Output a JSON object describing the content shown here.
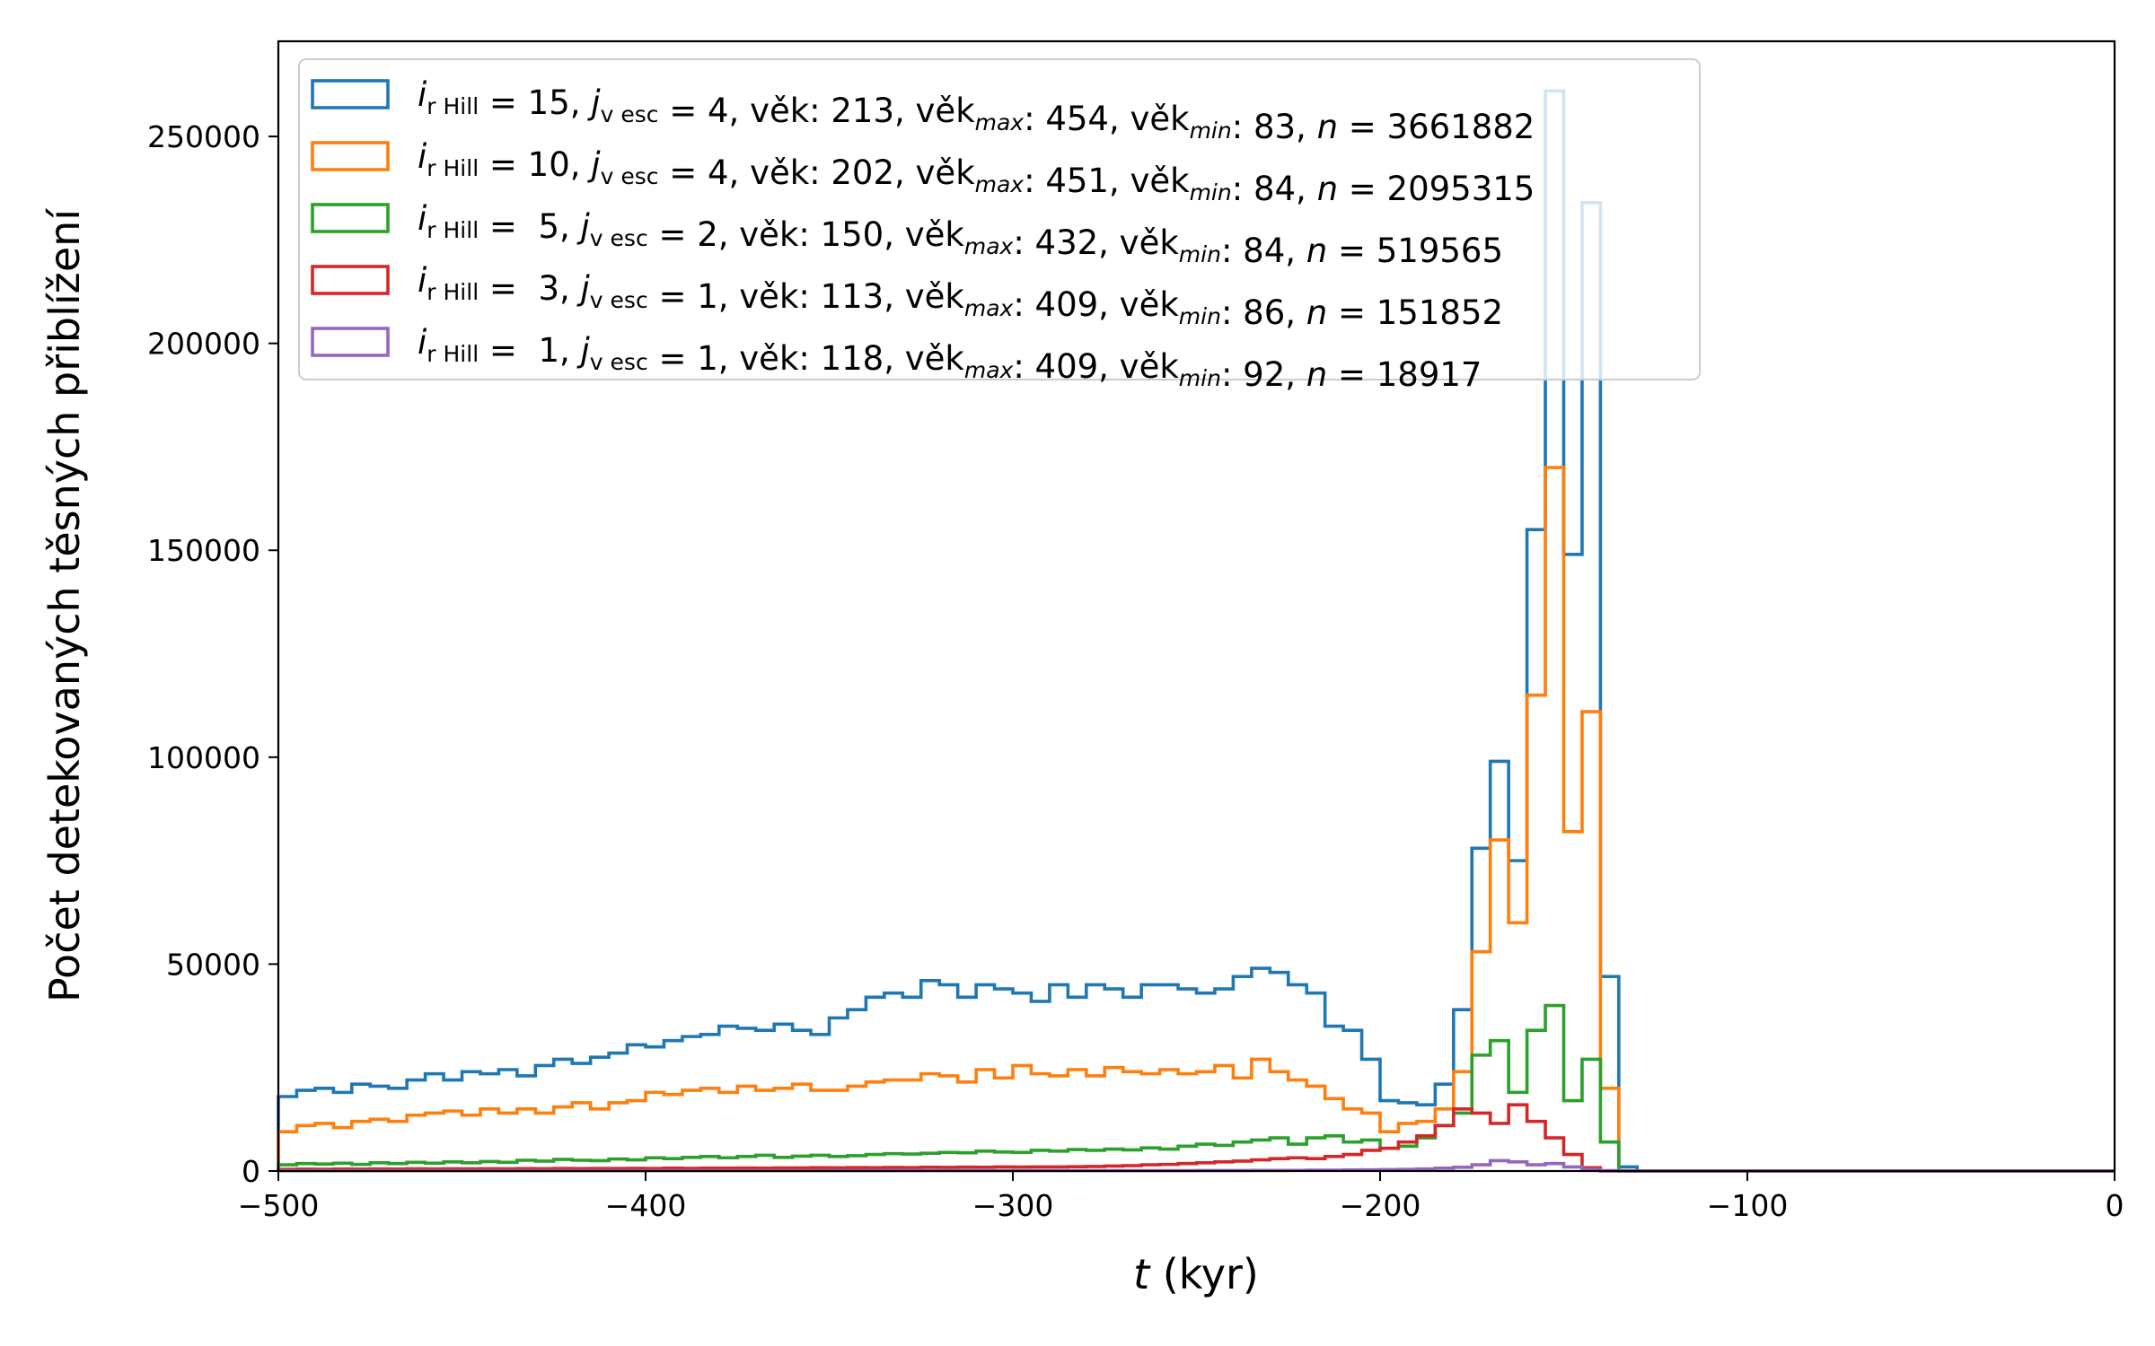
{
  "chart_data": {
    "type": "step-histogram",
    "xlabel_var": "t",
    "xlabel_unit": " (kyr)",
    "ylabel": "Počet detekovaných těsných přiblížení",
    "xlim": [
      -500,
      0
    ],
    "ylim": [
      0,
      273000
    ],
    "xticks": [
      -500,
      -400,
      -300,
      -200,
      -100,
      0
    ],
    "xtick_labels": [
      "−500",
      "−400",
      "−300",
      "−200",
      "−100",
      "0"
    ],
    "yticks": [
      0,
      50000,
      100000,
      150000,
      200000,
      250000
    ],
    "ytick_labels": [
      "0",
      "50000",
      "100000",
      "150000",
      "200000",
      "250000"
    ],
    "grid": false,
    "legend_position": "upper-left",
    "bin_start": -500,
    "bin_width": 5,
    "series": [
      {
        "color": "#1f77b4",
        "legend": {
          "i": "15",
          "j": "4",
          "vek": "213",
          "vek_max": "454",
          "vek_min": "83",
          "n": "3661882"
        },
        "values": [
          18000,
          19500,
          20000,
          19000,
          21000,
          20500,
          20000,
          22000,
          23500,
          22000,
          24000,
          23500,
          24500,
          23000,
          25500,
          27000,
          26000,
          27500,
          28500,
          30500,
          30000,
          31500,
          32500,
          33000,
          35000,
          34500,
          34000,
          35500,
          34000,
          33000,
          37000,
          39000,
          42000,
          43000,
          42000,
          46000,
          45000,
          42000,
          45000,
          44000,
          43000,
          41000,
          45000,
          42000,
          45000,
          44000,
          42000,
          45000,
          45000,
          44000,
          43000,
          44000,
          47000,
          49000,
          48000,
          45000,
          43000,
          35000,
          34000,
          27000,
          17000,
          16500,
          16000,
          21000,
          39000,
          78000,
          99000,
          75000,
          155000,
          261000,
          149000,
          234000,
          47000,
          1000,
          0,
          0,
          0,
          0,
          0,
          0,
          0,
          0,
          0,
          0,
          0,
          0,
          0,
          0,
          0,
          0,
          0,
          0,
          0,
          0,
          0,
          0,
          0,
          0,
          0,
          0
        ]
      },
      {
        "color": "#ff7f0e",
        "legend": {
          "i": "10",
          "j": "4",
          "vek": "202",
          "vek_max": "451",
          "vek_min": "84",
          "n": "2095315"
        },
        "values": [
          9500,
          11000,
          11500,
          10500,
          12000,
          12500,
          12000,
          13500,
          14000,
          14500,
          13500,
          15000,
          14000,
          15000,
          14000,
          15500,
          16500,
          15000,
          16500,
          17000,
          19000,
          18500,
          19500,
          20000,
          19000,
          20500,
          19500,
          20000,
          21000,
          19500,
          19500,
          20500,
          21500,
          22000,
          22000,
          23500,
          23000,
          21500,
          24500,
          22500,
          25500,
          23500,
          23000,
          24500,
          23000,
          25000,
          24000,
          23500,
          24500,
          23500,
          24000,
          25500,
          22500,
          27000,
          24000,
          22000,
          20500,
          17500,
          15000,
          14000,
          9500,
          11500,
          12000,
          15000,
          24000,
          53000,
          80000,
          60000,
          115000,
          170000,
          82000,
          111000,
          20000,
          0,
          0,
          0,
          0,
          0,
          0,
          0,
          0,
          0,
          0,
          0,
          0,
          0,
          0,
          0,
          0,
          0,
          0,
          0,
          0,
          0,
          0,
          0,
          0,
          0,
          0,
          0
        ]
      },
      {
        "color": "#2ca02c",
        "legend": {
          "i": " 5",
          "j": "2",
          "vek": "150",
          "vek_max": "432",
          "vek_min": "84",
          "n": "519565"
        },
        "values": [
          1500,
          1800,
          1700,
          1900,
          1600,
          2000,
          1800,
          2100,
          1900,
          2200,
          2000,
          2300,
          2100,
          2600,
          2400,
          2800,
          2600,
          2500,
          2900,
          2700,
          3200,
          3000,
          3300,
          3500,
          3200,
          3500,
          3800,
          3300,
          3600,
          3800,
          3500,
          3700,
          4000,
          4200,
          4100,
          4300,
          4500,
          4400,
          4800,
          4600,
          4500,
          5000,
          4800,
          5200,
          5000,
          5300,
          5100,
          5600,
          5300,
          6000,
          6500,
          6200,
          7000,
          7500,
          8000,
          6500,
          8000,
          8500,
          7000,
          7500,
          5500,
          6000,
          8000,
          11000,
          14000,
          28000,
          31500,
          19000,
          34000,
          40000,
          17000,
          27000,
          7000,
          0,
          0,
          0,
          0,
          0,
          0,
          0,
          0,
          0,
          0,
          0,
          0,
          0,
          0,
          0,
          0,
          0,
          0,
          0,
          0,
          0,
          0,
          0,
          0,
          0,
          0,
          0
        ]
      },
      {
        "color": "#d62728",
        "legend": {
          "i": " 3",
          "j": "1",
          "vek": "113",
          "vek_max": "409",
          "vek_min": "86",
          "n": "151852"
        },
        "values": [
          400,
          450,
          420,
          480,
          460,
          500,
          480,
          520,
          500,
          540,
          520,
          560,
          540,
          580,
          560,
          600,
          580,
          620,
          600,
          650,
          620,
          680,
          650,
          700,
          680,
          720,
          700,
          760,
          740,
          800,
          780,
          820,
          800,
          860,
          840,
          900,
          880,
          940,
          920,
          980,
          960,
          1000,
          980,
          1050,
          1100,
          1200,
          1300,
          1500,
          1600,
          1800,
          2000,
          2200,
          2400,
          2700,
          3000,
          3200,
          3000,
          3500,
          4000,
          5000,
          5500,
          7000,
          8500,
          11000,
          15000,
          14000,
          11500,
          16000,
          12000,
          8000,
          4000,
          800,
          0,
          0,
          0,
          0,
          0,
          0,
          0,
          0,
          0,
          0,
          0,
          0,
          0,
          0,
          0,
          0,
          0,
          0,
          0,
          0,
          0,
          0,
          0,
          0,
          0,
          0,
          0,
          0
        ]
      },
      {
        "color": "#9467bd",
        "legend": {
          "i": " 1",
          "j": "1",
          "vek": "118",
          "vek_max": "409",
          "vek_min": "92",
          "n": "18917"
        },
        "values": [
          60,
          60,
          60,
          60,
          60,
          60,
          60,
          60,
          60,
          60,
          70,
          70,
          70,
          70,
          70,
          70,
          70,
          70,
          70,
          70,
          80,
          80,
          80,
          80,
          80,
          80,
          80,
          80,
          80,
          80,
          90,
          90,
          90,
          90,
          90,
          90,
          90,
          90,
          90,
          90,
          100,
          100,
          100,
          100,
          100,
          100,
          100,
          100,
          100,
          100,
          120,
          120,
          120,
          140,
          140,
          160,
          200,
          220,
          250,
          300,
          350,
          400,
          500,
          700,
          900,
          1500,
          2500,
          2200,
          1500,
          1800,
          1000,
          400,
          100,
          0,
          0,
          0,
          0,
          0,
          0,
          0,
          0,
          0,
          0,
          0,
          0,
          0,
          0,
          0,
          0,
          0,
          0,
          0,
          0,
          0,
          0,
          0,
          0,
          0,
          0,
          0
        ]
      }
    ]
  }
}
